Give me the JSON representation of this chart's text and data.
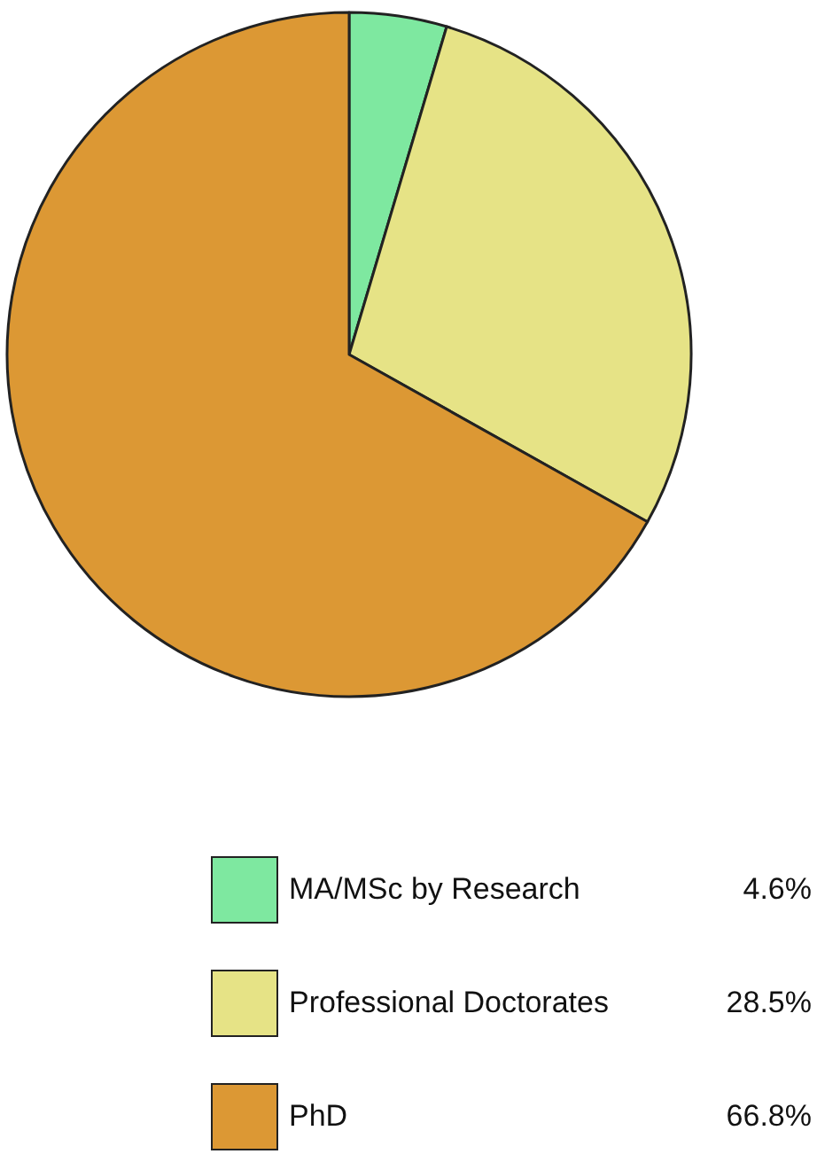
{
  "chart_data": {
    "type": "pie",
    "categories": [
      "MA/MSc by Research",
      "Professional Doctorates",
      "PhD"
    ],
    "values": [
      4.6,
      28.5,
      66.8
    ],
    "value_labels": [
      "4.6%",
      "28.5%",
      "66.8%"
    ],
    "colors": [
      "#7ee8a0",
      "#e6e386",
      "#dc9834"
    ],
    "legend": "bottom"
  }
}
